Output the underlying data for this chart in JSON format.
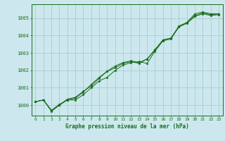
{
  "title": "Graphe pression niveau de la mer (hPa)",
  "background_color": "#cce8ee",
  "grid_color": "#aacccc",
  "line_color": "#1a6b1a",
  "xlim": [
    -0.5,
    23.5
  ],
  "ylim": [
    999.4,
    1005.8
  ],
  "xticks": [
    0,
    1,
    2,
    3,
    4,
    5,
    6,
    7,
    8,
    9,
    10,
    11,
    12,
    13,
    14,
    15,
    16,
    17,
    18,
    19,
    20,
    21,
    22,
    23
  ],
  "yticks": [
    1000,
    1001,
    1002,
    1003,
    1004,
    1005
  ],
  "series1": [
    1000.2,
    1000.3,
    999.7,
    1000.0,
    1000.3,
    1000.3,
    1000.6,
    1001.0,
    1001.4,
    1001.6,
    1002.0,
    1002.3,
    1002.45,
    1002.5,
    1002.4,
    1003.1,
    1003.7,
    1003.8,
    1004.5,
    1004.7,
    1005.1,
    1005.25,
    1005.15,
    1005.2
  ],
  "series2": [
    1000.2,
    1000.3,
    999.7,
    1000.05,
    1000.3,
    1000.4,
    1000.75,
    1001.2,
    1001.6,
    1001.95,
    1002.15,
    1002.4,
    1002.5,
    1002.4,
    1002.65,
    1003.2,
    1003.75,
    1003.85,
    1004.55,
    1004.75,
    1005.15,
    1005.3,
    1005.2,
    1005.25
  ],
  "series3": [
    1000.2,
    1000.3,
    999.65,
    1000.0,
    1000.35,
    1000.45,
    1000.8,
    1001.1,
    1001.55,
    1001.95,
    1002.25,
    1002.45,
    1002.55,
    1002.45,
    1002.65,
    1003.15,
    1003.75,
    1003.85,
    1004.5,
    1004.75,
    1005.25,
    1005.35,
    1005.25,
    1005.25
  ]
}
